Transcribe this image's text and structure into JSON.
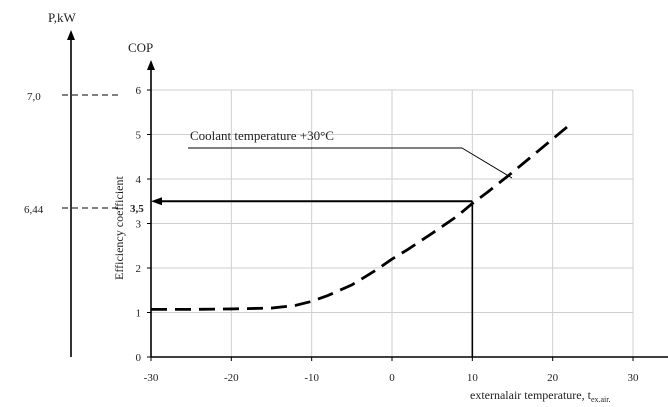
{
  "chart_data": {
    "type": "line",
    "xlabel": "externalair temperature, t",
    "xlabel_sub": "ex.air.",
    "ylabel": "Efficiency coefficient",
    "y_axis_title": "COP",
    "secondary_axis_title": "P,kW",
    "secondary_ticks": [
      "7,0",
      "6,44"
    ],
    "xlim": [
      -30,
      30
    ],
    "ylim": [
      0,
      6
    ],
    "x_ticks": [
      -30,
      -20,
      -10,
      0,
      10,
      20,
      30
    ],
    "y_ticks": [
      0,
      1,
      2,
      3,
      4,
      5,
      6
    ],
    "grid": true,
    "series": [
      {
        "name": "Coolant temperature +30°C",
        "style": "dashed",
        "x": [
          -30,
          -25,
          -20,
          -15,
          -12,
          -10,
          -8,
          -5,
          -2,
          0,
          2,
          5,
          8,
          10,
          12,
          15,
          18,
          22
        ],
        "y": [
          1.07,
          1.07,
          1.08,
          1.1,
          1.16,
          1.25,
          1.38,
          1.62,
          1.95,
          2.2,
          2.42,
          2.78,
          3.15,
          3.45,
          3.72,
          4.15,
          4.6,
          5.2
        ]
      }
    ],
    "annotations": {
      "cop_marker": "3,5",
      "cop_value": 3.5,
      "x_marker": 10,
      "power_value": "6,44"
    }
  }
}
